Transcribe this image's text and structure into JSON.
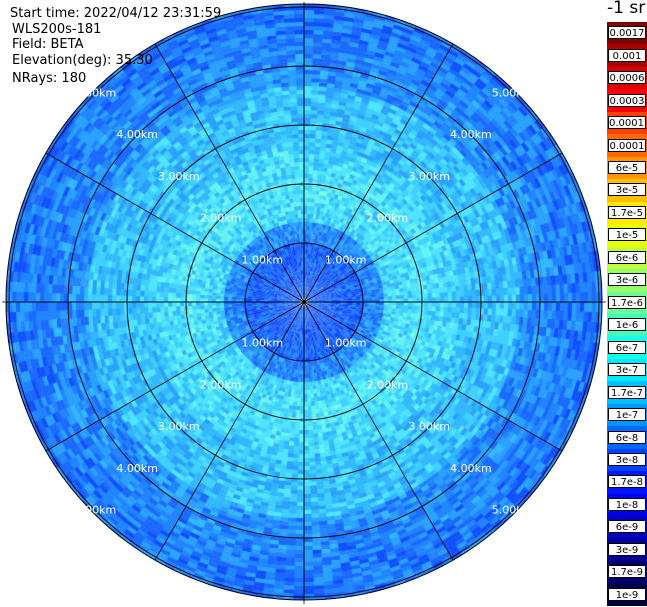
{
  "header": {
    "start_time": "Start time: 2022/04/12 23:31:59",
    "instrument": "WLS200s-181",
    "field": "Field: BETA",
    "elevation": "Elevation(deg): 35.30",
    "nrays": "NRays: 180"
  },
  "colorbar": {
    "unit_label": "-1 sr",
    "labels": [
      "0.0017",
      "0.001",
      "0.0006",
      "0.0003",
      "0.00017",
      "0.0001",
      "6e-5",
      "3e-5",
      "1.7e-5",
      "1e-5",
      "6e-6",
      "3e-6",
      "1.7e-6",
      "1e-6",
      "6e-7",
      "3e-7",
      "1.7e-7",
      "1e-7",
      "6e-8",
      "3e-8",
      "1.7e-8",
      "1e-8",
      "6e-9",
      "3e-9",
      "1.7e-9",
      "1e-9"
    ],
    "colors": [
      "#800000",
      "#aa0000",
      "#d40000",
      "#ff0000",
      "#ff4000",
      "#ff6a00",
      "#ff9500",
      "#ffbf00",
      "#ffea00",
      "#eaff00",
      "#c0ff3f",
      "#95ff6a",
      "#6aff95",
      "#40ffbf",
      "#15ffea",
      "#00eaff",
      "#00bfff",
      "#0095ff",
      "#006aff",
      "#0040ff",
      "#0015ff",
      "#0000ea",
      "#0000bf",
      "#000095",
      "#00006a",
      "#000040"
    ]
  },
  "chart_data": {
    "type": "heatmap",
    "projection": "polar-ppi",
    "range_ring_labels": [
      "1.00km",
      "2.00km",
      "3.00km",
      "4.00km",
      "5.00km"
    ],
    "range_rings_km": [
      1,
      2,
      3,
      4,
      5
    ],
    "max_range_km": 5.0,
    "spokes_deg": [
      0,
      30,
      60,
      90,
      120,
      150,
      180,
      210,
      240,
      270,
      300,
      330
    ],
    "grid": true,
    "field": "BETA",
    "nrays": 180
  }
}
